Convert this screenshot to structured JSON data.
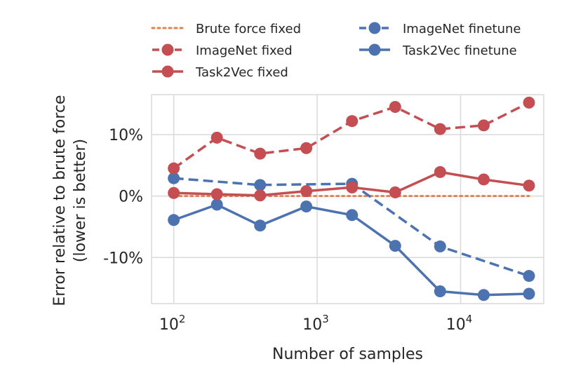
{
  "chart_data": {
    "type": "line",
    "xscale": "log",
    "xlabel": "Number of samples",
    "ylabel_lines": [
      "Error relative to brute force",
      "(lower is better)"
    ],
    "xlim": [
      70,
      38000
    ],
    "ylim": [
      -17.5,
      16.5
    ],
    "grid": true,
    "legend_location": "top",
    "x_ticks": [
      {
        "value": 100,
        "base": "10",
        "exp": "2"
      },
      {
        "value": 1000,
        "base": "10",
        "exp": "3"
      },
      {
        "value": 10000,
        "base": "10",
        "exp": "4"
      }
    ],
    "y_ticks": [
      {
        "value": 10,
        "label": "10%"
      },
      {
        "value": 0,
        "label": "0%"
      },
      {
        "value": -10,
        "label": "-10%"
      }
    ],
    "series": [
      {
        "name": "Brute force fixed",
        "color": "#dd8452",
        "style": "dotted",
        "markers": false,
        "points": [
          [
            100,
            0
          ],
          [
            30000,
            0
          ]
        ]
      },
      {
        "name": "ImageNet fixed",
        "color": "#c44e52",
        "style": "dashed",
        "markers": true,
        "points": [
          [
            100,
            4.5
          ],
          [
            200,
            9.5
          ],
          [
            400,
            6.9
          ],
          [
            840,
            7.8
          ],
          [
            1750,
            12.2
          ],
          [
            3500,
            14.5
          ],
          [
            7200,
            10.9
          ],
          [
            14500,
            11.5
          ],
          [
            30000,
            15.2
          ]
        ]
      },
      {
        "name": "Task2Vec fixed",
        "color": "#c44e52",
        "style": "solid",
        "markers": true,
        "points": [
          [
            100,
            0.5
          ],
          [
            200,
            0.3
          ],
          [
            400,
            0.1
          ],
          [
            840,
            0.8
          ],
          [
            1750,
            1.4
          ],
          [
            3500,
            0.6
          ],
          [
            7200,
            3.9
          ],
          [
            14500,
            2.7
          ],
          [
            30000,
            1.7
          ]
        ]
      },
      {
        "name": "ImageNet finetune",
        "color": "#4c72b0",
        "style": "dashed",
        "markers": true,
        "points": [
          [
            100,
            2.9
          ],
          [
            400,
            1.8
          ],
          [
            1750,
            2.0
          ],
          [
            7200,
            -8.2
          ],
          [
            30000,
            -13.0
          ]
        ]
      },
      {
        "name": "Task2Vec finetune",
        "color": "#4c72b0",
        "style": "solid",
        "markers": true,
        "points": [
          [
            100,
            -3.9
          ],
          [
            200,
            -1.4
          ],
          [
            400,
            -4.8
          ],
          [
            840,
            -1.7
          ],
          [
            1750,
            -3.1
          ],
          [
            3500,
            -8.1
          ],
          [
            7200,
            -15.5
          ],
          [
            14500,
            -16.1
          ],
          [
            30000,
            -15.9
          ]
        ]
      }
    ]
  }
}
